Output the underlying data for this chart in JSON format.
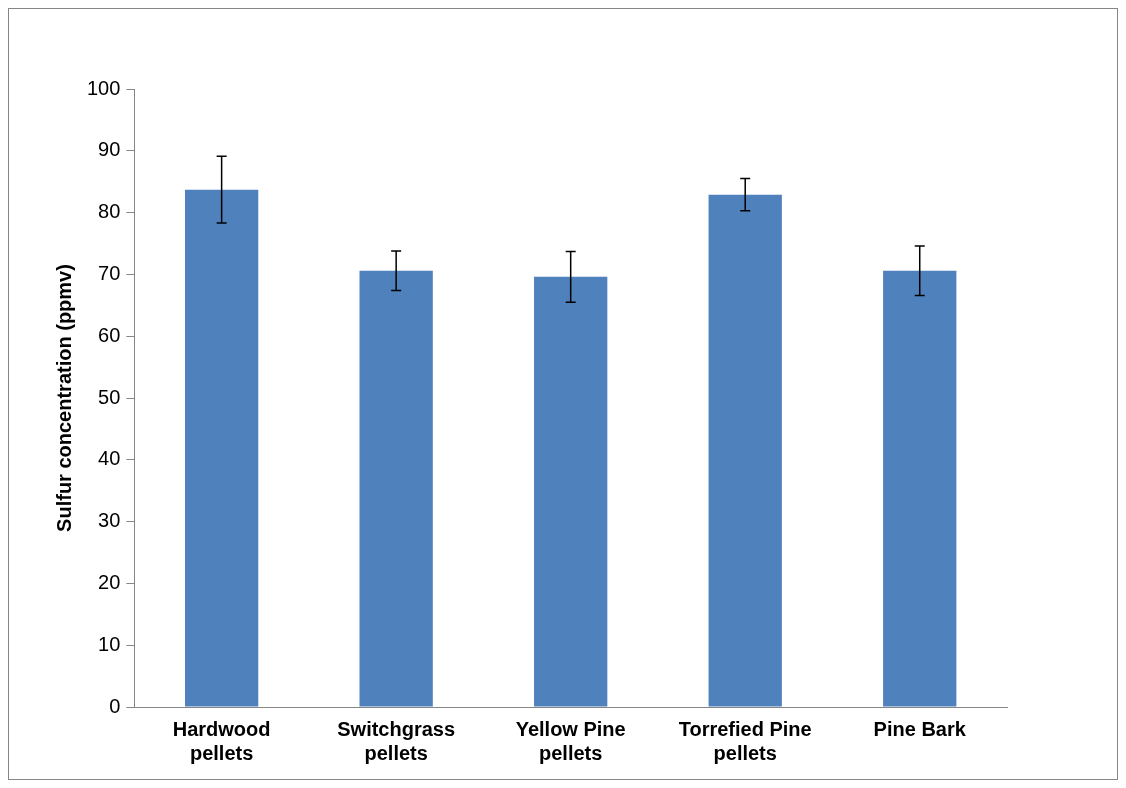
{
  "chart_data": {
    "type": "bar",
    "ylabel": "Sulfur concentration (ppmv)",
    "categories": [
      "Hardwood pellets",
      "Switchgrass pellets",
      "Yellow Pine pellets",
      "Torrefied Pine pellets",
      "Pine Bark"
    ],
    "values": [
      83.7,
      70.6,
      69.6,
      82.9,
      70.6
    ],
    "errors": [
      5.4,
      3.2,
      4.1,
      2.6,
      4.0
    ],
    "color": "#4f81bd",
    "ylim": [
      0,
      100
    ],
    "yticks": [
      0,
      10,
      20,
      30,
      40,
      50,
      60,
      70,
      80,
      90,
      100
    ],
    "grid": false,
    "legend": false
  }
}
